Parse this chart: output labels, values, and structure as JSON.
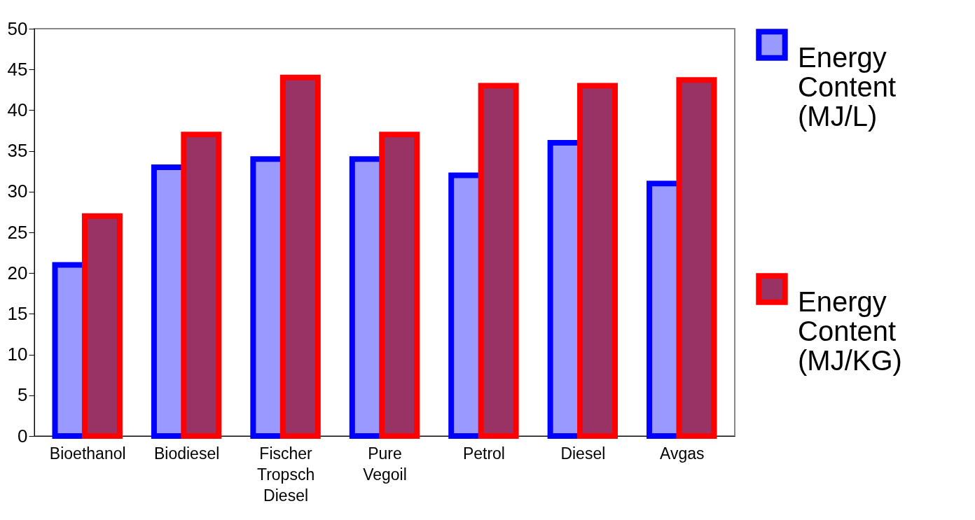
{
  "chart_data": {
    "type": "bar",
    "categories": [
      "Bioethanol",
      "Biodiesel",
      "Fischer Tropsch Diesel",
      "Pure Vegoil",
      "Petrol",
      "Diesel",
      "Avgas"
    ],
    "series": [
      {
        "name": "Energy Content (MJ/L)",
        "color": "#9999ff",
        "values": [
          21,
          33,
          34,
          34,
          32,
          36,
          31
        ]
      },
      {
        "name": "Energy Content (MJ/KG)",
        "color": "#993366",
        "values": [
          27,
          37,
          44,
          37,
          43,
          43,
          43.7
        ]
      }
    ],
    "ylim": [
      0,
      50
    ],
    "yticks": [
      0,
      5,
      10,
      15,
      20,
      25,
      30,
      35,
      40,
      45,
      50
    ],
    "grid": false,
    "legend": "right"
  }
}
